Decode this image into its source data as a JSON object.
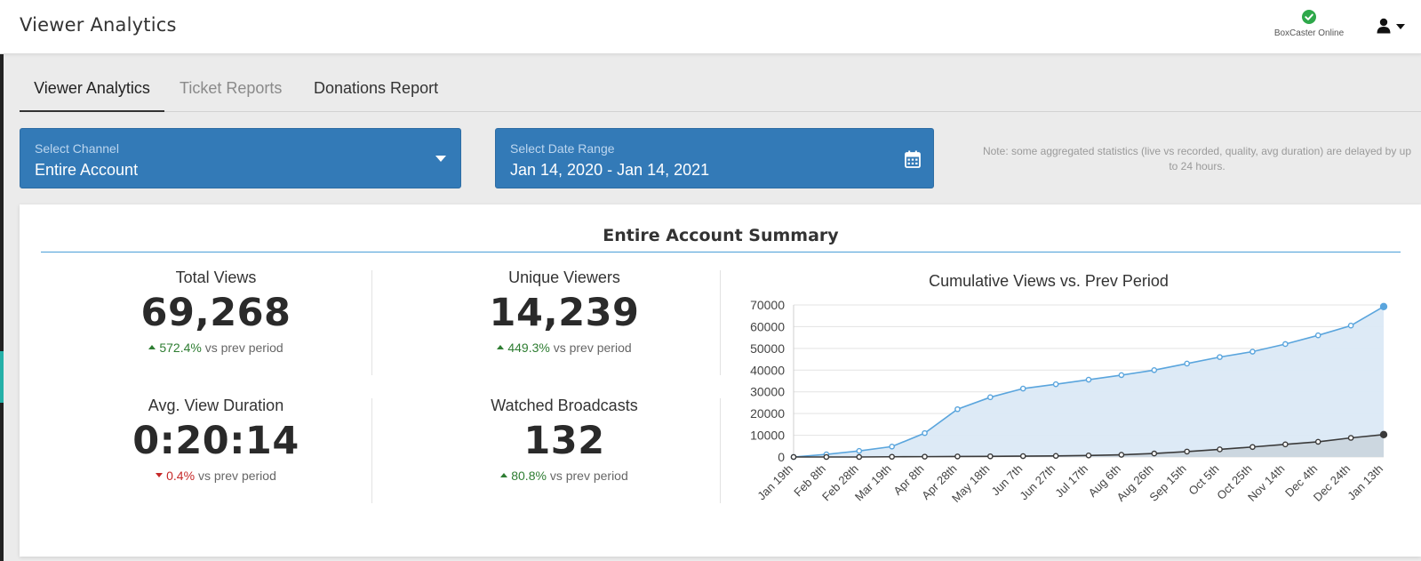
{
  "header": {
    "title": "Viewer Analytics",
    "status_text": "BoxCaster Online",
    "status_color": "#2ea84a"
  },
  "tabs": [
    {
      "label": "Viewer Analytics",
      "active": true
    },
    {
      "label": "Ticket Reports",
      "active": false
    },
    {
      "label": "Donations Report",
      "active": false
    }
  ],
  "filters": {
    "channel": {
      "label": "Select Channel",
      "value": "Entire Account",
      "icon": "caret-down-icon"
    },
    "date_range": {
      "label": "Select Date Range",
      "value": "Jan 14, 2020 - Jan 14, 2021",
      "icon": "calendar-icon"
    },
    "note": "Note: some aggregated statistics (live vs recorded, quality, avg duration) are delayed by up to 24 hours."
  },
  "summary": {
    "title": "Entire Account Summary",
    "stats": [
      {
        "label": "Total Views",
        "value": "69,268",
        "change": "572.4%",
        "direction": "up",
        "suffix": "vs prev period"
      },
      {
        "label": "Unique Viewers",
        "value": "14,239",
        "change": "449.3%",
        "direction": "up",
        "suffix": "vs prev period"
      },
      {
        "label": "Avg. View Duration",
        "value": "0:20:14",
        "change": "0.4%",
        "direction": "down",
        "suffix": "vs prev period"
      },
      {
        "label": "Watched Broadcasts",
        "value": "132",
        "change": "80.8%",
        "direction": "up",
        "suffix": "vs prev period"
      }
    ]
  },
  "chart_data": {
    "type": "area",
    "title": "Cumulative Views vs. Prev Period",
    "xlabel": "",
    "ylabel": "",
    "ylim": [
      0,
      70000
    ],
    "yticks": [
      0,
      10000,
      20000,
      30000,
      40000,
      50000,
      60000,
      70000
    ],
    "x": [
      "Jan 19th",
      "Feb 8th",
      "Feb 28th",
      "Mar 19th",
      "Apr 8th",
      "Apr 28th",
      "May 18th",
      "Jun 7th",
      "Jun 27th",
      "Jul 17th",
      "Aug 6th",
      "Aug 26th",
      "Sep 15th",
      "Oct 5th",
      "Oct 25th",
      "Nov 14th",
      "Dec 4th",
      "Dec 24th",
      "Jan 13th"
    ],
    "grid": true,
    "legend": "none",
    "series": [
      {
        "values": [
          0,
          1200,
          2800,
          4800,
          11000,
          22000,
          27500,
          31500,
          33500,
          35600,
          37700,
          40000,
          43000,
          46000,
          48500,
          52000,
          56000,
          60500,
          69268
        ],
        "color": "#5aa5dd",
        "fill": "#dbe9f6"
      },
      {
        "values": [
          0,
          0,
          0,
          100,
          150,
          250,
          300,
          400,
          500,
          700,
          1000,
          1600,
          2500,
          3500,
          4600,
          5800,
          7000,
          8800,
          10300
        ],
        "color": "#3a3a3a",
        "fill": "#c9d3dc"
      }
    ]
  }
}
